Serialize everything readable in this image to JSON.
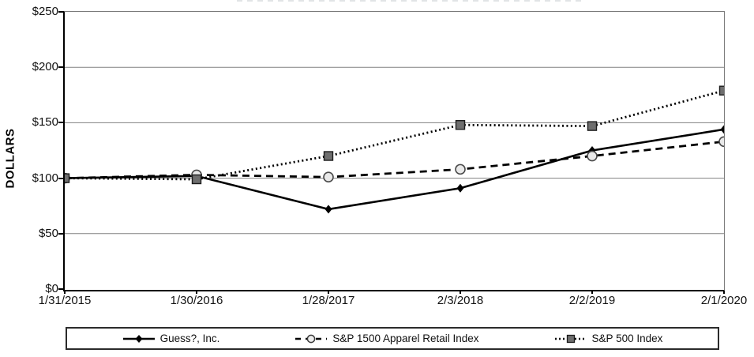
{
  "page": {
    "background": "#ffffff",
    "note_colors": {
      "grid": "#808080",
      "axis": "#000000",
      "text": "#111111"
    }
  },
  "chart_data": {
    "type": "line",
    "title": "",
    "ylabel": "DOLLARS",
    "xlabel": "",
    "ylim": [
      0,
      250
    ],
    "grid": true,
    "legend_position": "bottom",
    "y_ticks": [
      "$250",
      "$200",
      "$150",
      "$100",
      "$50",
      "$0"
    ],
    "y_tick_values": [
      250,
      200,
      150,
      100,
      50,
      0
    ],
    "categories": [
      "1/31/2015",
      "1/30/2016",
      "1/28/2017",
      "2/3/2018",
      "2/2/2019",
      "2/1/2020"
    ],
    "series": [
      {
        "name": "Guess?, Inc.",
        "line": "solid",
        "marker": "diamond",
        "color": "#000000",
        "marker_fill": "#000000",
        "values": [
          100,
          102,
          72,
          91,
          125,
          144
        ]
      },
      {
        "name": "S&P 1500 Apparel Retail Index",
        "line": "dashed",
        "marker": "circle",
        "color": "#000000",
        "marker_fill": "#e9e9e9",
        "values": [
          100,
          103,
          101,
          108,
          120,
          133
        ]
      },
      {
        "name": "S&P 500 Index",
        "line": "dotted",
        "marker": "square",
        "color": "#000000",
        "marker_fill": "#6e6e6e",
        "values": [
          100,
          99,
          120,
          148,
          147,
          179
        ]
      }
    ]
  }
}
